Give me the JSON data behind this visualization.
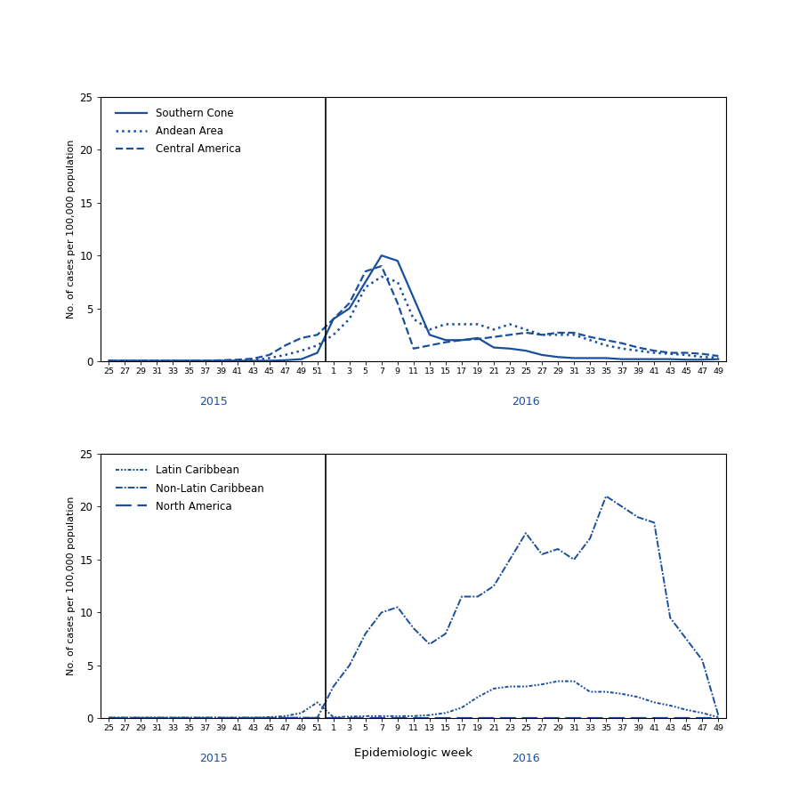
{
  "x_2015_labels": [
    "25",
    "27",
    "29",
    "31",
    "33",
    "35",
    "37",
    "39",
    "41",
    "43",
    "45",
    "47",
    "49",
    "51"
  ],
  "x_2016_labels": [
    "1",
    "3",
    "5",
    "7",
    "9",
    "11",
    "13",
    "15",
    "17",
    "19",
    "21",
    "23",
    "25",
    "27",
    "29",
    "31",
    "33",
    "35",
    "37",
    "39",
    "41",
    "43",
    "45",
    "47",
    "49"
  ],
  "top_southern_cone_2015": [
    0.05,
    0.05,
    0.05,
    0.05,
    0.05,
    0.05,
    0.05,
    0.05,
    0.05,
    0.05,
    0.05,
    0.1,
    0.2,
    0.8
  ],
  "top_southern_cone_2016": [
    4.0,
    5.0,
    7.5,
    10.0,
    9.5,
    6.0,
    2.5,
    2.0,
    2.0,
    2.2,
    1.3,
    1.2,
    1.0,
    0.6,
    0.4,
    0.3,
    0.3,
    0.3,
    0.2,
    0.2,
    0.2,
    0.2,
    0.15,
    0.15,
    0.2
  ],
  "top_andean_2015": [
    0.05,
    0.05,
    0.05,
    0.05,
    0.05,
    0.05,
    0.05,
    0.05,
    0.05,
    0.1,
    0.3,
    0.6,
    1.0,
    1.5
  ],
  "top_andean_2016": [
    2.5,
    4.0,
    7.0,
    8.0,
    7.5,
    4.0,
    3.0,
    3.5,
    3.5,
    3.5,
    3.0,
    3.5,
    3.0,
    2.5,
    2.5,
    2.5,
    2.0,
    1.5,
    1.2,
    1.0,
    0.8,
    0.7,
    0.6,
    0.4,
    0.35
  ],
  "top_central_america_2015": [
    0.05,
    0.05,
    0.05,
    0.05,
    0.05,
    0.05,
    0.05,
    0.1,
    0.15,
    0.25,
    0.6,
    1.5,
    2.2,
    2.5
  ],
  "top_central_america_2016": [
    4.0,
    5.5,
    8.5,
    9.0,
    5.5,
    1.2,
    1.5,
    1.8,
    2.0,
    2.1,
    2.3,
    2.5,
    2.7,
    2.5,
    2.7,
    2.7,
    2.3,
    2.0,
    1.7,
    1.3,
    1.0,
    0.8,
    0.8,
    0.7,
    0.5
  ],
  "bot_latin_carib_2015": [
    0.05,
    0.05,
    0.05,
    0.05,
    0.05,
    0.05,
    0.05,
    0.05,
    0.05,
    0.05,
    0.1,
    0.2,
    0.5,
    1.5
  ],
  "bot_latin_carib_2016": [
    0.1,
    0.15,
    0.2,
    0.2,
    0.2,
    0.2,
    0.3,
    0.5,
    1.0,
    2.0,
    2.8,
    3.0,
    3.0,
    3.2,
    3.5,
    3.5,
    2.5,
    2.5,
    2.3,
    2.0,
    1.5,
    1.2,
    0.8,
    0.5,
    0.1
  ],
  "bot_non_latin_carib_2015": [
    0.05,
    0.05,
    0.05,
    0.05,
    0.05,
    0.05,
    0.05,
    0.05,
    0.05,
    0.05,
    0.05,
    0.05,
    0.05,
    0.05
  ],
  "bot_non_latin_carib_2016": [
    3.0,
    5.0,
    8.0,
    10.0,
    10.5,
    8.5,
    7.0,
    8.0,
    11.5,
    11.5,
    12.5,
    15.0,
    17.5,
    15.5,
    16.0,
    15.0,
    17.0,
    21.0,
    20.0,
    19.0,
    18.5,
    9.5,
    7.5,
    5.5,
    0.3
  ],
  "bot_north_america_2015": [
    0.05,
    0.05,
    0.05,
    0.05,
    0.05,
    0.05,
    0.05,
    0.05,
    0.05,
    0.05,
    0.05,
    0.05,
    0.05,
    0.05
  ],
  "bot_north_america_2016": [
    0.05,
    0.05,
    0.05,
    0.05,
    0.05,
    0.05,
    0.05,
    0.05,
    0.05,
    0.05,
    0.05,
    0.05,
    0.05,
    0.05,
    0.05,
    0.05,
    0.05,
    0.05,
    0.05,
    0.05,
    0.05,
    0.05,
    0.05,
    0.05,
    0.05
  ],
  "color": "#1a4f9c",
  "background": "#ffffff",
  "ylabel": "No. of cases per 100,000 population",
  "xlabel": "Epidemiologic week",
  "ylim": [
    0,
    25
  ],
  "yticks": [
    0,
    5,
    10,
    15,
    20,
    25
  ],
  "year_color": "#1a4f9c"
}
